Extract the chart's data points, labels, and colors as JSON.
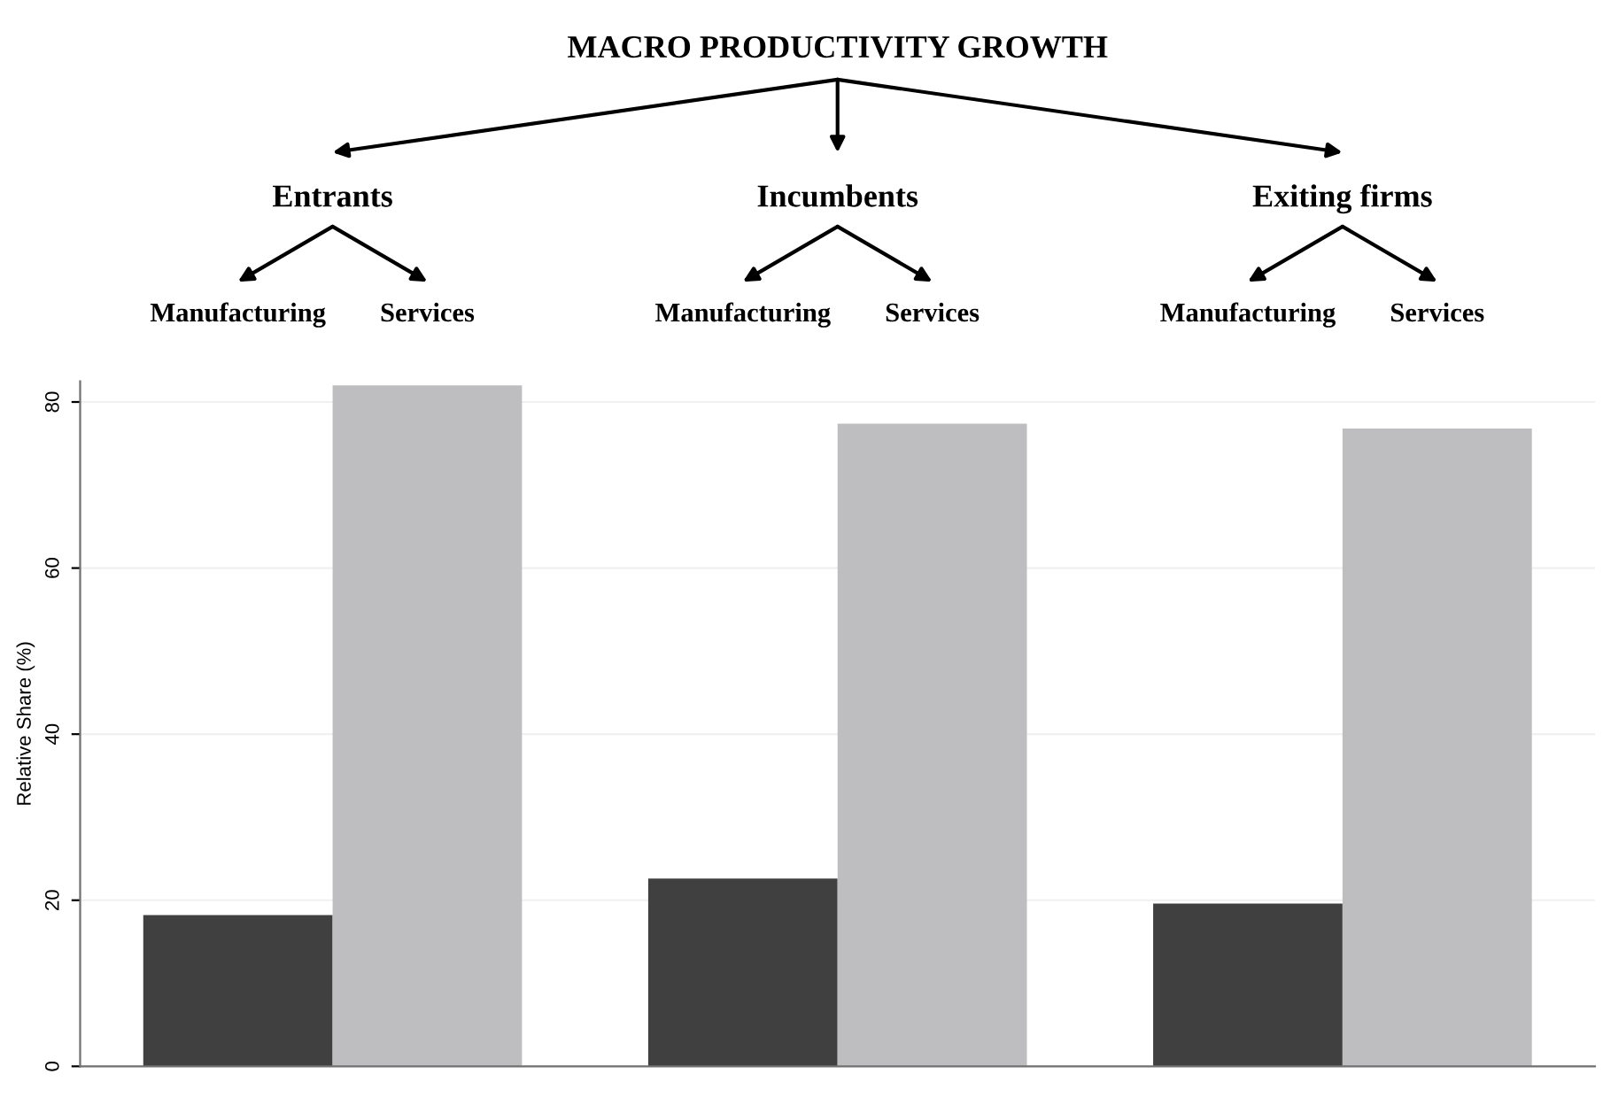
{
  "chart_data": {
    "type": "bar",
    "title": "MACRO PRODUCTIVITY GROWTH",
    "categories": [
      "Entrants",
      "Incumbents",
      "Exiting firms"
    ],
    "series": [
      {
        "color": "#404040",
        "values": [
          18.2,
          22.6,
          19.6
        ]
      },
      {
        "color": "#bebec0",
        "values": [
          82.0,
          77.4,
          76.8
        ]
      }
    ],
    "annotations": [
      "Manufacturing",
      "Services",
      "Manufacturing",
      "Services",
      "Manufacturing",
      "Services"
    ],
    "ylabel": "Relative Share (%)",
    "ylim": [
      0,
      82.5
    ],
    "yticks": [
      0,
      20,
      40,
      60,
      80
    ],
    "grid": "y",
    "legend": false,
    "tick_labels": "y"
  }
}
